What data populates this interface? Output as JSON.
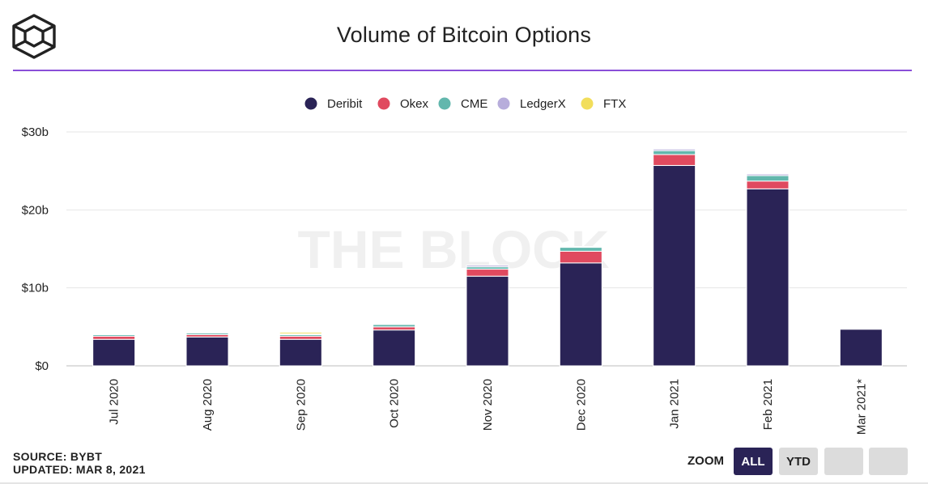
{
  "header": {
    "title": "Volume of Bitcoin Options"
  },
  "footer": {
    "source": "SOURCE: BYBT",
    "updated": "UPDATED: MAR 8, 2021"
  },
  "zoom": {
    "label": "ZOOM",
    "buttons": [
      {
        "label": "ALL",
        "active": true
      },
      {
        "label": "YTD",
        "active": false
      },
      {
        "label": "",
        "active": false
      },
      {
        "label": "",
        "active": false
      }
    ]
  },
  "watermark": "THE BLOCK",
  "colors": {
    "Deribit": "#2a2356",
    "Okex": "#e04a5f",
    "CME": "#62b7ad",
    "LedgerX": "#b7addb",
    "FTX": "#f2de5b",
    "accent": "#8a4fd8"
  },
  "chart_data": {
    "type": "bar",
    "stacked": true,
    "title": "Volume of Bitcoin Options",
    "xlabel": "",
    "ylabel": "",
    "ylim": [
      0,
      30
    ],
    "yticks": [
      "$0",
      "$10b",
      "$20b",
      "$30b"
    ],
    "grid": true,
    "legend_position": "top-center",
    "categories": [
      "Jul 2020",
      "Aug 2020",
      "Sep 2020",
      "Oct 2020",
      "Nov 2020",
      "Dec 2020",
      "Jan 2021",
      "Feb 2021",
      "Mar 2021*"
    ],
    "series": [
      {
        "name": "Deribit",
        "values": [
          3.4,
          3.7,
          3.4,
          4.6,
          11.5,
          13.2,
          25.7,
          22.7,
          4.7
        ]
      },
      {
        "name": "Okex",
        "values": [
          0.4,
          0.3,
          0.4,
          0.4,
          0.9,
          1.5,
          1.4,
          1.0,
          0.1
        ]
      },
      {
        "name": "CME",
        "values": [
          0.2,
          0.2,
          0.2,
          0.3,
          0.3,
          0.5,
          0.5,
          0.7,
          0.1
        ]
      },
      {
        "name": "LedgerX",
        "values": [
          0.1,
          0.1,
          0.1,
          0.1,
          0.2,
          0.1,
          0.2,
          0.2,
          0.1
        ]
      },
      {
        "name": "FTX",
        "values": [
          0.0,
          0.0,
          0.2,
          0.0,
          0.0,
          0.0,
          0.0,
          0.0,
          0.0
        ]
      }
    ]
  }
}
